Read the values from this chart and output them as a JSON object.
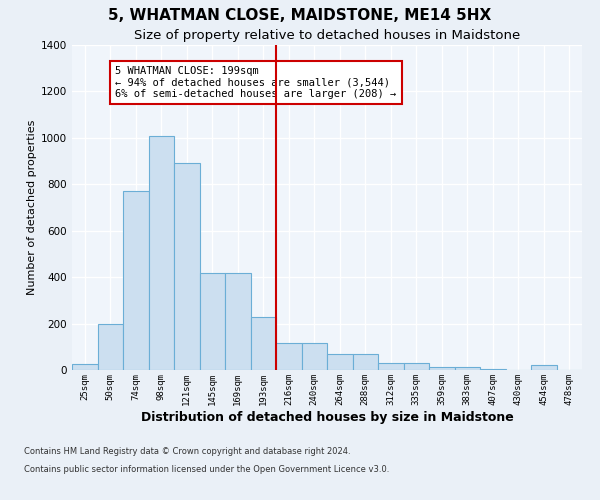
{
  "title": "5, WHATMAN CLOSE, MAIDSTONE, ME14 5HX",
  "subtitle": "Size of property relative to detached houses in Maidstone",
  "xlabel": "Distribution of detached houses by size in Maidstone",
  "ylabel": "Number of detached properties",
  "categories": [
    "25sqm",
    "50sqm",
    "74sqm",
    "98sqm",
    "121sqm",
    "145sqm",
    "169sqm",
    "193sqm",
    "216sqm",
    "240sqm",
    "264sqm",
    "288sqm",
    "312sqm",
    "335sqm",
    "359sqm",
    "383sqm",
    "407sqm",
    "430sqm",
    "454sqm",
    "478sqm"
  ],
  "values": [
    25,
    200,
    770,
    1010,
    890,
    420,
    420,
    230,
    115,
    115,
    70,
    70,
    30,
    30,
    15,
    15,
    5,
    0,
    20,
    0
  ],
  "bar_color": "#ccdff0",
  "bar_edge_color": "#6baed6",
  "property_line_color": "#cc0000",
  "annotation_text": "5 WHATMAN CLOSE: 199sqm\n← 94% of detached houses are smaller (3,544)\n6% of semi-detached houses are larger (208) →",
  "annotation_box_color": "#cc0000",
  "ylim": [
    0,
    1400
  ],
  "yticks": [
    0,
    200,
    400,
    600,
    800,
    1000,
    1200,
    1400
  ],
  "footer_line1": "Contains HM Land Registry data © Crown copyright and database right 2024.",
  "footer_line2": "Contains public sector information licensed under the Open Government Licence v3.0.",
  "bg_color": "#eaf0f7",
  "plot_bg_color": "#f0f5fb",
  "grid_color": "#ffffff",
  "title_fontsize": 11,
  "subtitle_fontsize": 9.5,
  "xlabel_fontsize": 9,
  "ylabel_fontsize": 8
}
